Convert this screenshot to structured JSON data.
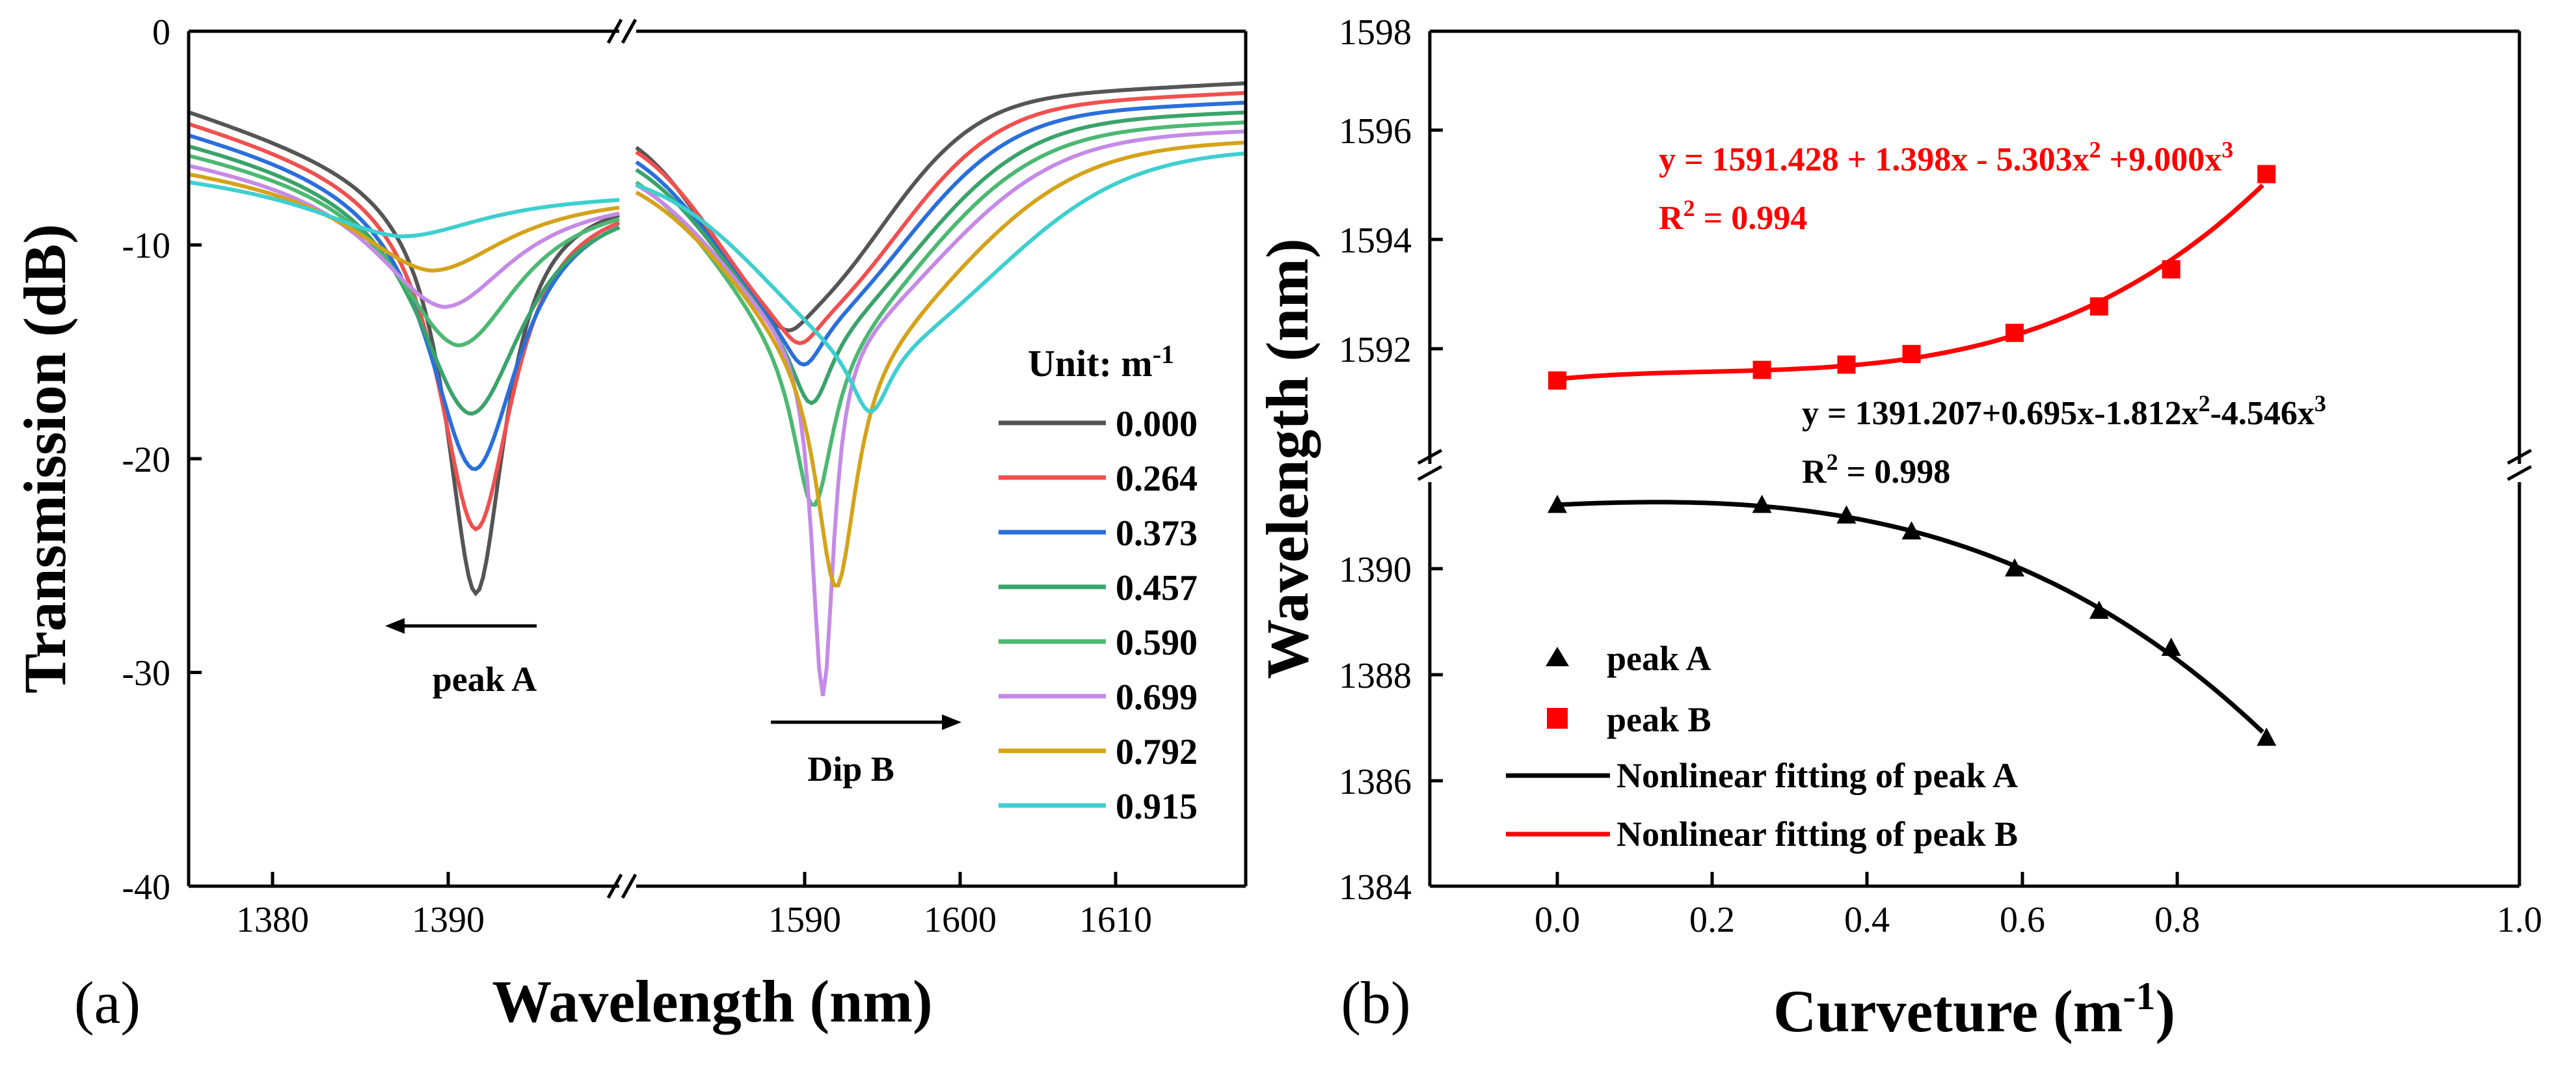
{
  "panel_a": {
    "label": "(a)",
    "ylabel": "Transmission (dB)",
    "xlabel": "Wavelength (nm)",
    "ytick_labels": [
      "0",
      "-10",
      "-20",
      "-30",
      "-40"
    ],
    "xtick_labels_left": [
      "1380",
      "1390"
    ],
    "xtick_labels_right": [
      "1590",
      "1600",
      "1610"
    ],
    "legend_title_prefix": "Unit: m",
    "legend_title_sup": "-1",
    "annotation_peakA": "peak A",
    "annotation_dipB": "Dip B"
  },
  "panel_b": {
    "label": "(b)",
    "ylabel": "Wavelength (nm)",
    "xlabel_prefix": "Curveture (m",
    "xlabel_sup": "-1",
    "xlabel_suffix": ")",
    "ytick_labels_upper": [
      "1598",
      "1596",
      "1594",
      "1592"
    ],
    "ytick_labels_lower": [
      "1390",
      "1388",
      "1386",
      "1384"
    ],
    "xtick_labels": [
      "0.0",
      "0.2",
      "0.4",
      "0.6",
      "0.8",
      "1.0"
    ],
    "eqB_line1": "y = 1591.428 + 1.398x - 5.303x",
    "eqB_line1_sup": "2",
    "eqB_line1_mid": " +9.000x",
    "eqB_line1_sup2": "3",
    "eqB_r2_prefix": "R",
    "eqB_r2_sup": "2",
    "eqB_r2_value": " = 0.994",
    "eqA_line1": "y = 1391.207+0.695x-1.812x",
    "eqA_line1_sup": "2",
    "eqA_line1_mid": "-4.546x",
    "eqA_line1_sup2": "3",
    "eqA_r2_prefix": "R",
    "eqA_r2_sup": "2",
    "eqA_r2_value": " = 0.998",
    "legend": [
      "peak A",
      "peak B",
      "Nonlinear fitting of peak A",
      "Nonlinear fitting of peak B"
    ]
  },
  "colors": {
    "peakA": "#000000",
    "peakB": "#ff0000",
    "curves": [
      "#555555",
      "#f05050",
      "#2a6fdb",
      "#3aa36a",
      "#4cb872",
      "#c58ae6",
      "#d4a31a",
      "#3ecfcf"
    ]
  },
  "chart_data": [
    {
      "type": "line",
      "title": "",
      "xlabel": "Wavelength (nm)",
      "ylabel": "Transmission (dB)",
      "ylim": [
        -40,
        0
      ],
      "x_segments": [
        [
          1375,
          1399
        ],
        [
          1583,
          1615
        ]
      ],
      "legend_title": "Unit: m-1",
      "series": [
        {
          "name": "0.000",
          "dipA": {
            "x": 1391.0,
            "y": -26.3
          },
          "dipB": {
            "x": 1591.0,
            "y": -14.0
          }
        },
        {
          "name": "0.264",
          "dipA": {
            "x": 1391.0,
            "y": -23.3
          },
          "dipB": {
            "x": 1591.6,
            "y": -14.6
          }
        },
        {
          "name": "0.373",
          "dipA": {
            "x": 1390.9,
            "y": -20.5
          },
          "dipB": {
            "x": 1591.8,
            "y": -15.6
          }
        },
        {
          "name": "0.457",
          "dipA": {
            "x": 1390.7,
            "y": -17.9
          },
          "dipB": {
            "x": 1592.2,
            "y": -17.4
          }
        },
        {
          "name": "0.590",
          "dipA": {
            "x": 1390.0,
            "y": -14.7
          },
          "dipB": {
            "x": 1592.3,
            "y": -22.2
          }
        },
        {
          "name": "0.699",
          "dipA": {
            "x": 1389.2,
            "y": -12.9
          },
          "dipB": {
            "x": 1592.8,
            "y": -31.1
          }
        },
        {
          "name": "0.792",
          "dipA": {
            "x": 1388.5,
            "y": -11.2
          },
          "dipB": {
            "x": 1593.5,
            "y": -26.0
          }
        },
        {
          "name": "0.915",
          "dipA": {
            "x": 1386.8,
            "y": -9.6
          },
          "dipB": {
            "x": 1595.3,
            "y": -17.8
          }
        }
      ],
      "annotations": [
        "peak A",
        "Dip B"
      ]
    },
    {
      "type": "scatter",
      "title": "",
      "xlabel": "Curveture (m-1)",
      "ylabel": "Wavelength (nm)",
      "xlim": [
        -0.1,
        1.0
      ],
      "ylim_lower": [
        1384,
        1391.7
      ],
      "ylim_upper": [
        1590.2,
        1598
      ],
      "series": [
        {
          "name": "peak A",
          "marker": "triangle",
          "x": [
            0.0,
            0.264,
            0.373,
            0.457,
            0.59,
            0.699,
            0.792,
            0.915
          ],
          "y": [
            1391.2,
            1391.2,
            1391.0,
            1390.7,
            1390.0,
            1389.2,
            1388.5,
            1386.8
          ]
        },
        {
          "name": "peak B",
          "marker": "square",
          "x": [
            0.0,
            0.264,
            0.373,
            0.457,
            0.59,
            0.699,
            0.792,
            0.915
          ],
          "y": [
            1591.4,
            1591.6,
            1591.7,
            1591.9,
            1592.3,
            1592.8,
            1593.5,
            1595.3
          ]
        }
      ],
      "fits": [
        {
          "name": "Nonlinear fitting of peak A",
          "coeffs": [
            1391.207,
            0.695,
            -1.812,
            -4.546
          ],
          "r2": 0.998
        },
        {
          "name": "Nonlinear fitting of peak B",
          "coeffs": [
            1591.428,
            1.398,
            -5.303,
            9.0
          ],
          "r2": 0.994
        }
      ]
    }
  ]
}
